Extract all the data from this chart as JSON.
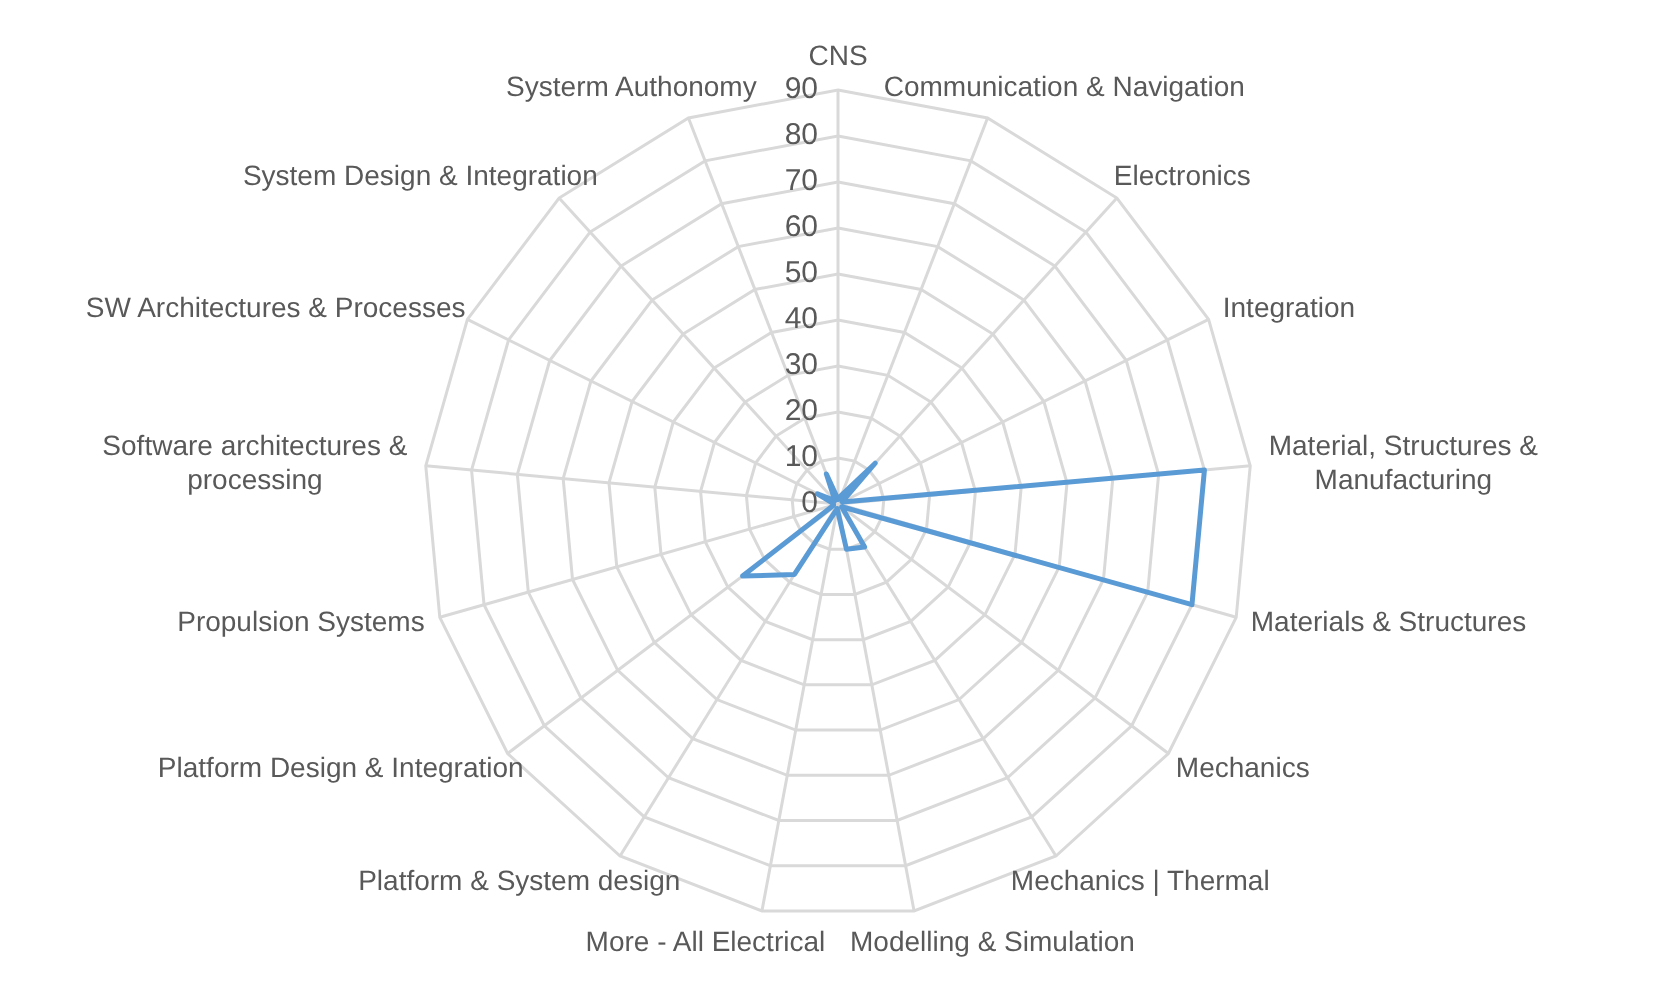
{
  "chart_data": {
    "type": "radar",
    "categories": [
      "CNS",
      "Communication & Navigation",
      "Electronics",
      "Integration",
      "Material, Structures & Manufacturing",
      "Materials & Structures",
      "Mechanics",
      "Mechanics | Thermal",
      "Modelling & Simulation",
      "More - All Electrical",
      "Platform & System design",
      "Platform Design & Integration",
      "Propulsion Systems",
      "Software architectures & processing",
      "SW Architectures & Processes",
      "System Design & Integration",
      "Systerm Authonomy"
    ],
    "series": [
      {
        "color": "#5b9bd5",
        "values": [
          1,
          2,
          12,
          1,
          80,
          80,
          1,
          11,
          10,
          1,
          18,
          26,
          1,
          1,
          5,
          1,
          7
        ]
      }
    ],
    "ylim": [
      0,
      90
    ],
    "yticks": [
      0,
      10,
      20,
      30,
      40,
      50,
      60,
      70,
      80,
      90
    ],
    "grid": true,
    "legend": false,
    "marker": "none"
  }
}
